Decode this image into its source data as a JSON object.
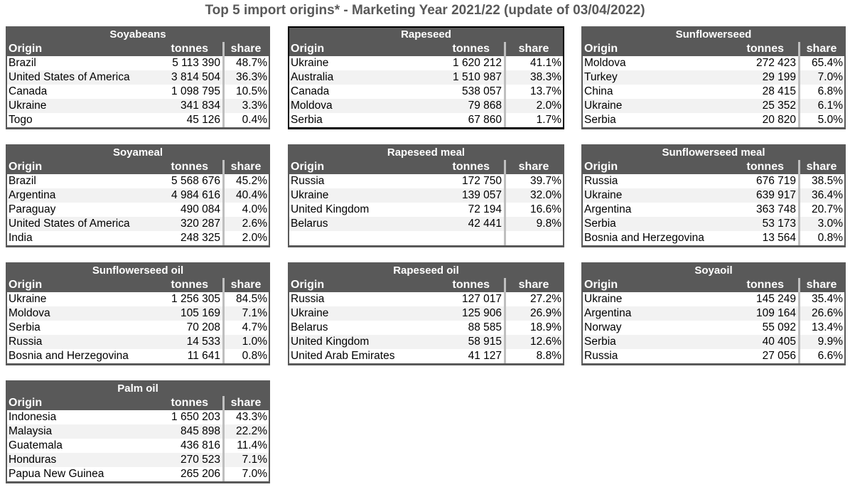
{
  "title": "Top 5 import origins* - Marketing Year 2021/22 (update of 03/04/2022)",
  "headers": {
    "origin": "Origin",
    "tonnes": "tonnes",
    "share": "share"
  },
  "tables": [
    {
      "name": "Soyabeans",
      "rows": [
        [
          "Brazil",
          "5 113 390",
          "48.7%"
        ],
        [
          "United States of America",
          "3 814 504",
          "36.3%"
        ],
        [
          "Canada",
          "1 098 795",
          "10.5%"
        ],
        [
          "Ukraine",
          "341 834",
          "3.3%"
        ],
        [
          "Togo",
          "45 126",
          "0.4%"
        ]
      ]
    },
    {
      "name": "Rapeseed",
      "selected": true,
      "rows": [
        [
          "Ukraine",
          "1 620 212",
          "41.1%"
        ],
        [
          "Australia",
          "1 510 987",
          "38.3%"
        ],
        [
          "Canada",
          "538 057",
          "13.7%"
        ],
        [
          "Moldova",
          "79 868",
          "2.0%"
        ],
        [
          "Serbia",
          "67 860",
          "1.7%"
        ]
      ]
    },
    {
      "name": "Sunflowerseed",
      "rows": [
        [
          "Moldova",
          "272 423",
          "65.4%"
        ],
        [
          "Turkey",
          "29 199",
          "7.0%"
        ],
        [
          "China",
          "28 415",
          "6.8%"
        ],
        [
          "Ukraine",
          "25 352",
          "6.1%"
        ],
        [
          "Serbia",
          "20 820",
          "5.0%"
        ]
      ]
    },
    {
      "name": "Soyameal",
      "rows": [
        [
          "Brazil",
          "5 568 676",
          "45.2%"
        ],
        [
          "Argentina",
          "4 984 616",
          "40.4%"
        ],
        [
          "Paraguay",
          "490 084",
          "4.0%"
        ],
        [
          "United States of America",
          "320 287",
          "2.6%"
        ],
        [
          "India",
          "248 325",
          "2.0%"
        ]
      ]
    },
    {
      "name": "Rapeseed meal",
      "rows": [
        [
          "Russia",
          "172 750",
          "39.7%"
        ],
        [
          "Ukraine",
          "139 057",
          "32.0%"
        ],
        [
          "United Kingdom",
          "72 194",
          "16.6%"
        ],
        [
          "Belarus",
          "42 441",
          "9.8%"
        ],
        [
          "",
          "",
          ""
        ]
      ]
    },
    {
      "name": "Sunflowerseed meal",
      "rows": [
        [
          "Russia",
          "676 719",
          "38.5%"
        ],
        [
          "Ukraine",
          "639 917",
          "36.4%"
        ],
        [
          "Argentina",
          "363 748",
          "20.7%"
        ],
        [
          "Serbia",
          "53 173",
          "3.0%"
        ],
        [
          "Bosnia and Herzegovina",
          "13 564",
          "0.8%"
        ]
      ]
    },
    {
      "name": "Sunflowerseed oil",
      "rows": [
        [
          "Ukraine",
          "1 256 305",
          "84.5%"
        ],
        [
          "Moldova",
          "105 169",
          "7.1%"
        ],
        [
          "Serbia",
          "70 208",
          "4.7%"
        ],
        [
          "Russia",
          "14 533",
          "1.0%"
        ],
        [
          "Bosnia and Herzegovina",
          "11 641",
          "0.8%"
        ]
      ]
    },
    {
      "name": "Rapeseed oil",
      "rows": [
        [
          "Russia",
          "127 017",
          "27.2%"
        ],
        [
          "Ukraine",
          "125 906",
          "26.9%"
        ],
        [
          "Belarus",
          "88 585",
          "18.9%"
        ],
        [
          "United Kingdom",
          "58 915",
          "12.6%"
        ],
        [
          "United Arab Emirates",
          "41 127",
          "8.8%"
        ]
      ]
    },
    {
      "name": "Soyaoil",
      "rows": [
        [
          "Ukraine",
          "145 249",
          "35.4%"
        ],
        [
          "Argentina",
          "109 164",
          "26.6%"
        ],
        [
          "Norway",
          "55 092",
          "13.4%"
        ],
        [
          "Serbia",
          "40 405",
          "9.9%"
        ],
        [
          "Russia",
          "27 056",
          "6.6%"
        ]
      ]
    },
    {
      "name": "Palm oil",
      "rows": [
        [
          "Indonesia",
          "1 650 203",
          "43.3%"
        ],
        [
          "Malaysia",
          "845 898",
          "22.2%"
        ],
        [
          "Guatemala",
          "436 816",
          "11.4%"
        ],
        [
          "Honduras",
          "270 523",
          "7.1%"
        ],
        [
          "Papua New Guinea",
          "265 206",
          "7.0%"
        ]
      ]
    }
  ]
}
